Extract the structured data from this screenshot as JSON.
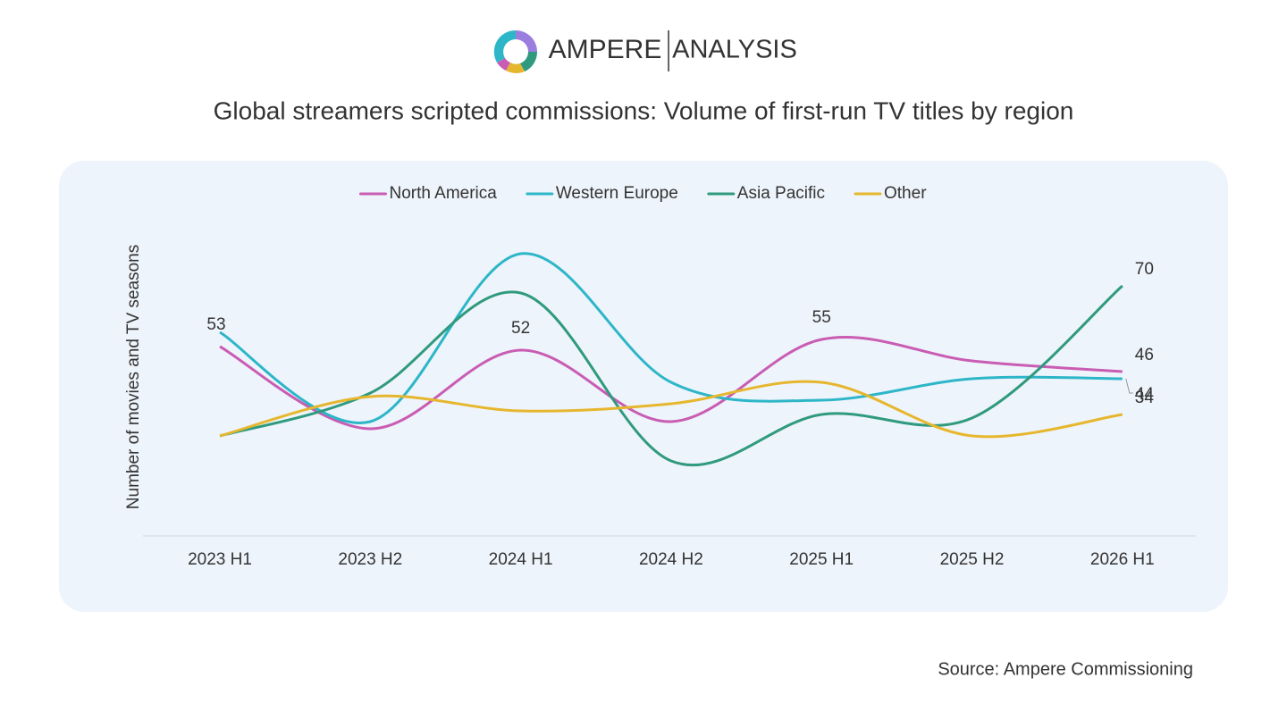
{
  "chart_data": {
    "type": "line",
    "brand": "AMPERE",
    "brand_sub": "ANALYSIS",
    "title": "Global streamers scripted commissions: Volume of first-run TV titles by region",
    "y_label": "Number of movies and TV seasons",
    "source": "Source: Ampere Commissioning",
    "categories": [
      "2023 H1",
      "2023 H2",
      "2024 H1",
      "2024 H2",
      "2025 H1",
      "2025 H2",
      "2026 H1"
    ],
    "series": [
      {
        "name": "North America",
        "color": "#c95cb3",
        "values": [
          53,
          30,
          52,
          32,
          55,
          49,
          46
        ],
        "labeled": [
          0,
          2,
          4,
          6
        ]
      },
      {
        "name": "Western Europe",
        "color": "#2db6c8",
        "values": [
          57,
          32,
          79,
          43,
          38,
          44,
          44
        ],
        "labeled": [
          6
        ]
      },
      {
        "name": "Asia Pacific",
        "color": "#2f9a7e",
        "values": [
          28,
          40,
          68,
          21,
          34,
          33,
          70
        ],
        "labeled": [
          6
        ]
      },
      {
        "name": "Other",
        "color": "#e6b72e",
        "values": [
          28,
          39,
          35,
          37,
          43,
          28,
          34
        ],
        "labeled": [
          6
        ]
      }
    ],
    "ylim": [
      0,
      90
    ],
    "grid": false,
    "legend": "top"
  }
}
